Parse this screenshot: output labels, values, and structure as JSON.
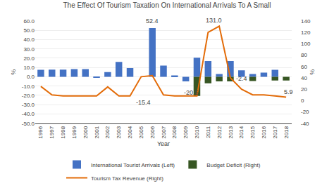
{
  "chart_data": {
    "type": "bar",
    "title": "The Effect Of Tourism Taxation On International Arrivals To A Small",
    "xlabel": "Year",
    "ylabel": "%",
    "y2label": "%",
    "x": [
      1996,
      1997,
      1998,
      1999,
      2000,
      2001,
      2002,
      2003,
      2004,
      2005,
      2006,
      2007,
      2008,
      2009,
      2010,
      2011,
      2012,
      2013,
      2014,
      2015,
      2016,
      2017,
      2018
    ],
    "series": [
      {
        "name": "International Tourist Arrivals (Left)",
        "type": "bar",
        "color": "#4472C4",
        "values": [
          7.5,
          7.8,
          7.8,
          8.2,
          8.2,
          -1.0,
          5.0,
          16.0,
          9.5,
          0.0,
          52.4,
          12.0,
          1.5,
          -5.0,
          20.5,
          17.0,
          3.0,
          17.0,
          7.0,
          3.0,
          4.5,
          7.5,
          null
        ]
      },
      {
        "name": "Budget Deficit (Right)",
        "type": "bar",
        "color": "#375623",
        "values": [
          null,
          null,
          null,
          null,
          null,
          null,
          null,
          null,
          null,
          null,
          null,
          null,
          null,
          null,
          -20.5,
          -7.0,
          -5.0,
          -5.0,
          null,
          -4.5,
          null,
          -4.0,
          -4.0
        ]
      },
      {
        "name": "Tourism Tax Revenue (Right)",
        "type": "line",
        "color": "#E36C09",
        "axis": "y2",
        "values": [
          25,
          10,
          8,
          8,
          8,
          8,
          24,
          8,
          8,
          42,
          44,
          10,
          8,
          8,
          8,
          120,
          131.0,
          40,
          20,
          10,
          10,
          8,
          5.9
        ]
      }
    ],
    "xlim": [
      1995.5,
      2018.5
    ],
    "xticks": [
      1996,
      1997,
      1998,
      1999,
      2000,
      2001,
      2002,
      2003,
      2004,
      2005,
      2006,
      2007,
      2008,
      2009,
      2010,
      2011,
      2012,
      2013,
      2014,
      2015,
      2016,
      2017,
      2018
    ],
    "ylim": [
      -50.0,
      60.0
    ],
    "yticks": [
      {
        "value": -50,
        "label": "-50.0"
      },
      {
        "value": -40,
        "label": "-40.0"
      },
      {
        "value": -30,
        "label": "-30.0"
      },
      {
        "value": -20,
        "label": "-20.0"
      },
      {
        "value": -10,
        "label": "-10.0"
      },
      {
        "value": 0,
        "label": "0.0"
      },
      {
        "value": 10,
        "label": "10.0"
      },
      {
        "value": 20,
        "label": "20.0"
      },
      {
        "value": 30,
        "label": "30.0"
      },
      {
        "value": 40,
        "label": "40.0"
      },
      {
        "value": 50,
        "label": "50.0"
      },
      {
        "value": 60,
        "label": "60.0"
      }
    ],
    "y2lim": [
      -40,
      140
    ],
    "y2ticks": [
      -40,
      -20,
      0,
      20,
      40,
      60,
      80,
      100,
      120,
      140
    ],
    "annotations": [
      {
        "text": "52.4",
        "x": 2006,
        "y": 55
      },
      {
        "text": "-15.4",
        "x": 2005.2,
        "y": -33
      },
      {
        "text": "-20.5",
        "x": 2009.5,
        "y": -22
      },
      {
        "text": "-2.4",
        "x": 2014,
        "y": -7
      },
      {
        "text": "131.0",
        "x": 2011.5,
        "y": 133,
        "axis": "y2"
      },
      {
        "text": "5.9",
        "x": 2018.2,
        "y": 7,
        "axis": "y2"
      }
    ],
    "grid": true,
    "legend": "bottom"
  }
}
